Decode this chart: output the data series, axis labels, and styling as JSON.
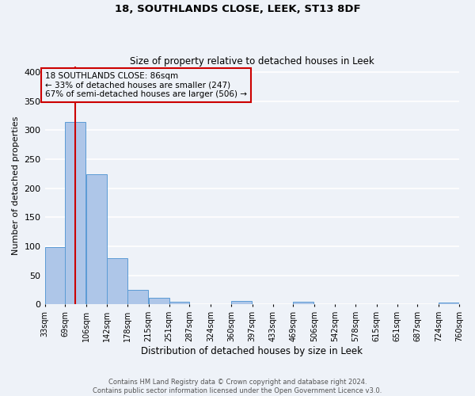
{
  "title1": "18, SOUTHLANDS CLOSE, LEEK, ST13 8DF",
  "title2": "Size of property relative to detached houses in Leek",
  "xlabel": "Distribution of detached houses by size in Leek",
  "ylabel": "Number of detached properties",
  "bin_labels": [
    "33sqm",
    "69sqm",
    "106sqm",
    "142sqm",
    "178sqm",
    "215sqm",
    "251sqm",
    "287sqm",
    "324sqm",
    "360sqm",
    "397sqm",
    "433sqm",
    "469sqm",
    "506sqm",
    "542sqm",
    "578sqm",
    "615sqm",
    "651sqm",
    "687sqm",
    "724sqm",
    "760sqm"
  ],
  "bin_edges": [
    33,
    69,
    106,
    142,
    178,
    215,
    251,
    287,
    324,
    360,
    397,
    433,
    469,
    506,
    542,
    578,
    615,
    651,
    687,
    724,
    760
  ],
  "bar_heights": [
    99,
    314,
    224,
    80,
    25,
    12,
    5,
    1,
    0,
    6,
    0,
    0,
    5,
    0,
    0,
    0,
    0,
    0,
    0,
    3
  ],
  "bar_color": "#aec6e8",
  "bar_edge_color": "#5b9bd5",
  "vline_x": 86,
  "vline_color": "#cc0000",
  "annotation_title": "18 SOUTHLANDS CLOSE: 86sqm",
  "annotation_line1": "← 33% of detached houses are smaller (247)",
  "annotation_line2": "67% of semi-detached houses are larger (506) →",
  "annotation_box_color": "#cc0000",
  "ylim": [
    0,
    410
  ],
  "yticks": [
    0,
    50,
    100,
    150,
    200,
    250,
    300,
    350,
    400
  ],
  "footer1": "Contains HM Land Registry data © Crown copyright and database right 2024.",
  "footer2": "Contains public sector information licensed under the Open Government Licence v3.0.",
  "bg_color": "#eef2f8",
  "grid_color": "#ffffff"
}
